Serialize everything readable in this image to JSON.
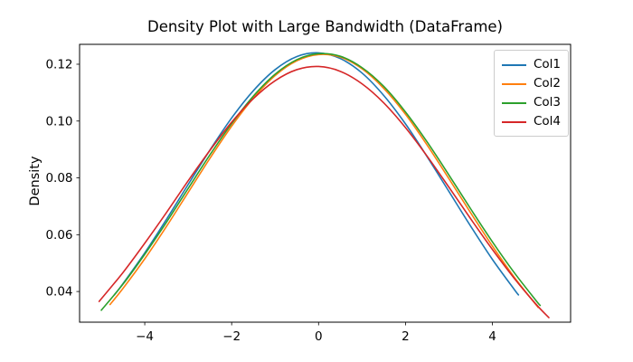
{
  "title": "Density Plot with Large Bandwidth (DataFrame)",
  "colors": {
    "axis": "#000000",
    "legend_border": "#cccccc",
    "background": "#ffffff"
  },
  "chart_data": {
    "type": "line",
    "title": "Density Plot with Large Bandwidth (DataFrame)",
    "xlabel": "",
    "ylabel": "Density",
    "xlim": [
      -5.5,
      5.8
    ],
    "ylim": [
      0.0292,
      0.127
    ],
    "grid": false,
    "legend_position": "upper right",
    "x_ticks": [
      {
        "value": -4,
        "label": "−4"
      },
      {
        "value": -2,
        "label": "−2"
      },
      {
        "value": 0,
        "label": "0"
      },
      {
        "value": 2,
        "label": "2"
      },
      {
        "value": 4,
        "label": "4"
      }
    ],
    "y_ticks": [
      {
        "value": 0.04,
        "label": "0.04"
      },
      {
        "value": 0.06,
        "label": "0.06"
      },
      {
        "value": 0.08,
        "label": "0.08"
      },
      {
        "value": 0.1,
        "label": "0.10"
      },
      {
        "value": 0.12,
        "label": "0.12"
      }
    ],
    "series": [
      {
        "name": "Col1",
        "color": "#1f77b4",
        "x": [
          -4.7,
          -4.5,
          -4,
          -3.5,
          -3,
          -2.5,
          -2,
          -1.5,
          -1,
          -0.5,
          0,
          0.5,
          1,
          1.5,
          2,
          2.5,
          3,
          3.5,
          4,
          4.5,
          4.6
        ],
        "y": [
          0.0388,
          0.0428,
          0.0536,
          0.0654,
          0.0777,
          0.0898,
          0.1011,
          0.1107,
          0.1181,
          0.1227,
          0.124,
          0.122,
          0.1169,
          0.109,
          0.099,
          0.0874,
          0.0752,
          0.063,
          0.0513,
          0.0408,
          0.0388
        ]
      },
      {
        "name": "Col2",
        "color": "#ff7f0e",
        "x": [
          -4.8,
          -4.5,
          -4,
          -3.5,
          -3,
          -2.5,
          -2,
          -1.5,
          -1,
          -0.5,
          0,
          0.5,
          1,
          1.5,
          2,
          2.5,
          3,
          3.5,
          4,
          4.5,
          5,
          5.05
        ],
        "y": [
          0.0354,
          0.0411,
          0.0515,
          0.0629,
          0.0749,
          0.0869,
          0.0982,
          0.1081,
          0.116,
          0.1212,
          0.1234,
          0.1225,
          0.1184,
          0.1115,
          0.1024,
          0.0915,
          0.0797,
          0.0677,
          0.056,
          0.0451,
          0.0354,
          0.0345
        ]
      },
      {
        "name": "Col3",
        "color": "#2ca02c",
        "x": [
          -5,
          -4.5,
          -4,
          -3.5,
          -3,
          -2.5,
          -2,
          -1.5,
          -1,
          -0.5,
          0,
          0.5,
          1,
          1.5,
          2,
          2.5,
          3,
          3.5,
          4,
          4.5,
          5,
          5.1
        ],
        "y": [
          0.0334,
          0.0426,
          0.0531,
          0.0644,
          0.0763,
          0.0881,
          0.0991,
          0.1088,
          0.1165,
          0.1216,
          0.1237,
          0.1228,
          0.1188,
          0.1122,
          0.1032,
          0.0926,
          0.081,
          0.0691,
          0.0575,
          0.0467,
          0.0369,
          0.0351
        ]
      },
      {
        "name": "Col4",
        "color": "#d62728",
        "x": [
          -5.05,
          -4.5,
          -4,
          -3.5,
          -3,
          -2.5,
          -2,
          -1.5,
          -1,
          -0.5,
          0,
          0.5,
          1,
          1.5,
          2,
          2.5,
          3,
          3.5,
          4,
          4.5,
          5,
          5.3
        ],
        "y": [
          0.0365,
          0.0467,
          0.057,
          0.0678,
          0.079,
          0.0897,
          0.0996,
          0.1079,
          0.1142,
          0.1181,
          0.1192,
          0.1175,
          0.1131,
          0.1064,
          0.0977,
          0.0876,
          0.0767,
          0.0656,
          0.0548,
          0.0447,
          0.0356,
          0.0308
        ]
      }
    ]
  },
  "legend": {
    "items": [
      {
        "label": "Col1",
        "color": "#1f77b4"
      },
      {
        "label": "Col2",
        "color": "#ff7f0e"
      },
      {
        "label": "Col3",
        "color": "#2ca02c"
      },
      {
        "label": "Col4",
        "color": "#d62728"
      }
    ]
  }
}
